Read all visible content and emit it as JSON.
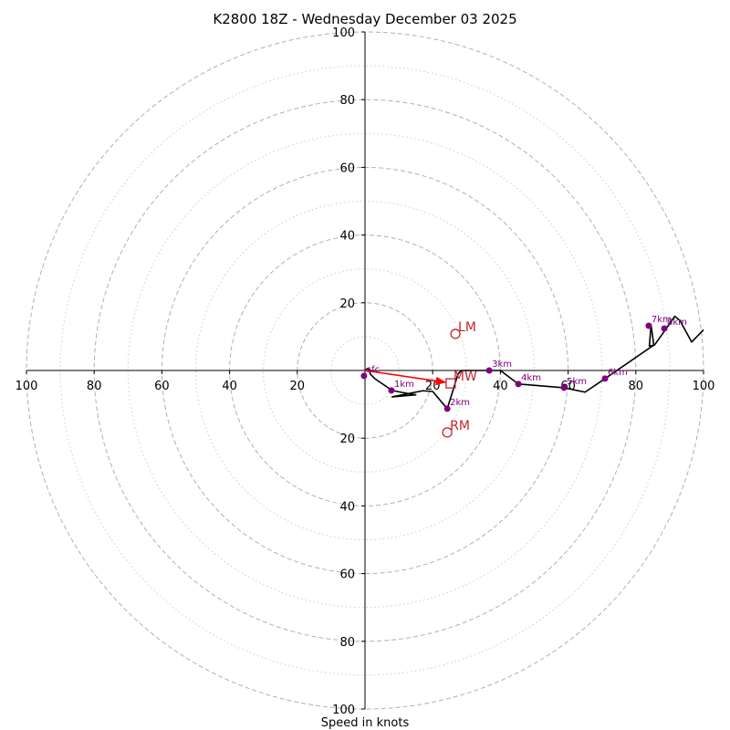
{
  "chart_data": {
    "type": "hodograph",
    "title": "K2800 18Z - Wednesday December 03 2025",
    "xlabel": "Speed in knots",
    "max_speed": 100,
    "ring_step_major": 20,
    "ring_step_minor": 10,
    "tick_labels": [
      "20",
      "40",
      "60",
      "80",
      "100"
    ],
    "trace": [
      [
        0,
        0
      ],
      [
        0.8,
        0.6
      ],
      [
        1.5,
        0.2
      ],
      [
        1.5,
        -1.0
      ],
      [
        3,
        -2.5
      ],
      [
        8,
        -5.9
      ],
      [
        11,
        -6.5
      ],
      [
        15,
        -7.2
      ],
      [
        8,
        -7.8
      ],
      [
        17,
        -6.0
      ],
      [
        20,
        -6.2
      ],
      [
        24.3,
        -11.3
      ],
      [
        27.5,
        -1.0
      ],
      [
        28.5,
        0
      ],
      [
        36.7,
        0
      ],
      [
        40,
        0
      ],
      [
        45.3,
        -4.0
      ],
      [
        58.8,
        -5.1
      ],
      [
        65,
        -6.4
      ],
      [
        70.9,
        -2.4
      ],
      [
        85.3,
        7.5
      ],
      [
        84.5,
        13.5
      ],
      [
        84,
        7.2
      ],
      [
        85.5,
        7.5
      ],
      [
        89,
        12.4
      ],
      [
        91.5,
        16.0
      ],
      [
        93,
        14.8
      ],
      [
        96.5,
        8.4
      ],
      [
        100,
        12.0
      ]
    ],
    "height_markers": [
      {
        "label": "sfc",
        "u": -0.3,
        "v": -1.6
      },
      {
        "label": "1km",
        "u": 7.8,
        "v": -5.9
      },
      {
        "label": "2km",
        "u": 24.3,
        "v": -11.3
      },
      {
        "label": "3km",
        "u": 36.7,
        "v": 0.0
      },
      {
        "label": "4km",
        "u": 45.3,
        "v": -4.0
      },
      {
        "label": "5km",
        "u": 58.8,
        "v": -5.1
      },
      {
        "label": "6km",
        "u": 70.9,
        "v": -2.4
      },
      {
        "label": "7km",
        "u": 83.8,
        "v": 13.2
      },
      {
        "label": "8km",
        "u": 88.4,
        "v": 12.4
      }
    ],
    "storm_motions": [
      {
        "label": "LM",
        "u": 26.7,
        "v": 10.8,
        "marker": "circle"
      },
      {
        "label": "RM",
        "u": 24.3,
        "v": -18.3,
        "marker": "circle"
      },
      {
        "label": "MW",
        "u": 25.3,
        "v": -3.8,
        "marker": "square"
      }
    ],
    "shear_vector": {
      "from": [
        0,
        0
      ],
      "to": [
        25.3,
        -3.8
      ]
    },
    "colors": {
      "trace": "#000000",
      "markers": "#800080",
      "motion": "#c0282d",
      "shear": "#ff0000",
      "grid": "#b0b0b0"
    }
  }
}
